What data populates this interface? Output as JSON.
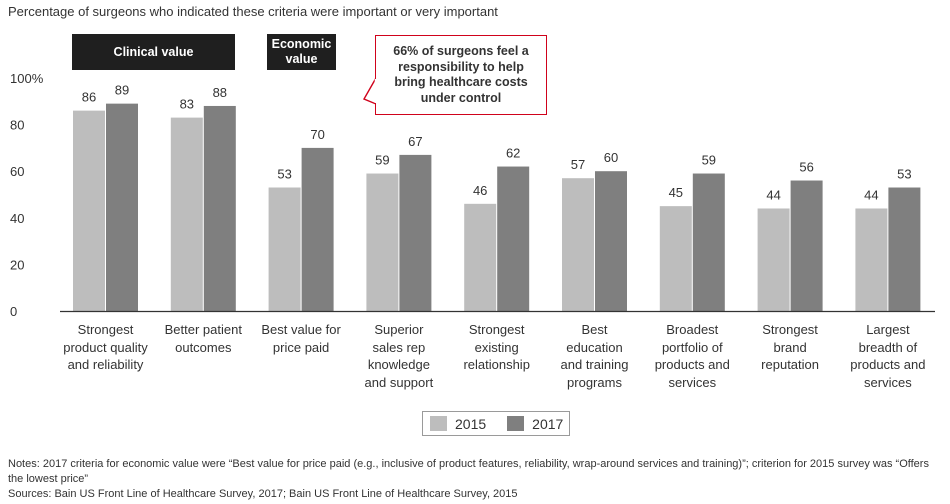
{
  "subtitle": "Percentage of surgeons who indicated these criteria were important or very important",
  "headers": {
    "clinical": "Clinical value",
    "economic": "Economic value"
  },
  "callout": "66% of surgeons feel a responsibility to help bring healthcare costs under control",
  "colors": {
    "s2015": "#bdbdbd",
    "s2017": "#7f7f7f",
    "accent": "#d0021b",
    "header_bg": "#1f1f1f"
  },
  "chart_data": {
    "type": "bar",
    "categories": [
      "Strongest product quality and reliability",
      "Better patient outcomes",
      "Best value for price paid",
      "Superior sales rep knowledge and support",
      "Strongest existing relationship",
      "Best education and training programs",
      "Broadest portfolio of products and services",
      "Strongest brand reputation",
      "Largest breadth of products and services"
    ],
    "category_lines": [
      [
        "Strongest",
        "product quality",
        "and reliability"
      ],
      [
        "Better patient",
        "outcomes"
      ],
      [
        "Best value for",
        "price paid"
      ],
      [
        "Superior",
        "sales rep",
        "knowledge",
        "and support"
      ],
      [
        "Strongest",
        "existing",
        "relationship"
      ],
      [
        "Best",
        "education",
        "and training",
        "programs"
      ],
      [
        "Broadest",
        "portfolio of",
        "products and",
        "services"
      ],
      [
        "Strongest",
        "brand",
        "reputation"
      ],
      [
        "Largest",
        "breadth of",
        "products and",
        "services"
      ]
    ],
    "series": [
      {
        "name": "2015",
        "values": [
          86,
          83,
          53,
          59,
          46,
          57,
          45,
          44,
          44
        ]
      },
      {
        "name": "2017",
        "values": [
          89,
          88,
          70,
          67,
          62,
          60,
          59,
          56,
          53
        ]
      }
    ],
    "yticks": [
      "0",
      "20",
      "40",
      "60",
      "80",
      "100%"
    ],
    "ylim": [
      0,
      100
    ],
    "grid": false,
    "legend_position": "bottom-center"
  },
  "notes": {
    "line1": "Notes: 2017 criteria for economic value were “Best value for price paid (e.g., inclusive of product features, reliability, wrap-around services and training)”; criterion for 2015 survey was “Offers the lowest price”",
    "line2": "Sources: Bain US Front Line of Healthcare Survey, 2017; Bain US Front Line of Healthcare Survey, 2015"
  }
}
